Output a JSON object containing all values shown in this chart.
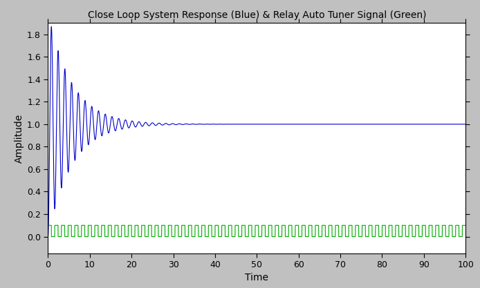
{
  "title": "Close Loop System Response (Blue) & Relay Auto Tuner Signal (Green)",
  "xlabel": "Time",
  "ylabel": "Amplitude",
  "xlim": [
    0,
    100
  ],
  "ylim": [
    -0.15,
    1.9
  ],
  "yticks": [
    0.0,
    0.2,
    0.4,
    0.6,
    0.8,
    1.0,
    1.2,
    1.4,
    1.6,
    1.8
  ],
  "xticks": [
    0,
    10,
    20,
    30,
    40,
    50,
    60,
    70,
    80,
    90,
    100
  ],
  "figure_background_color": "#c0c0c0",
  "axes_background_color": "#ffffff",
  "blue_color": "#0000cc",
  "green_color": "#00aa00",
  "line_width": 0.8,
  "relay_amplitude": 0.1,
  "relay_period": 1.6,
  "zeta": 0.045,
  "wn": 3.9,
  "title_fontsize": 10,
  "label_fontsize": 10,
  "tick_fontsize": 9
}
